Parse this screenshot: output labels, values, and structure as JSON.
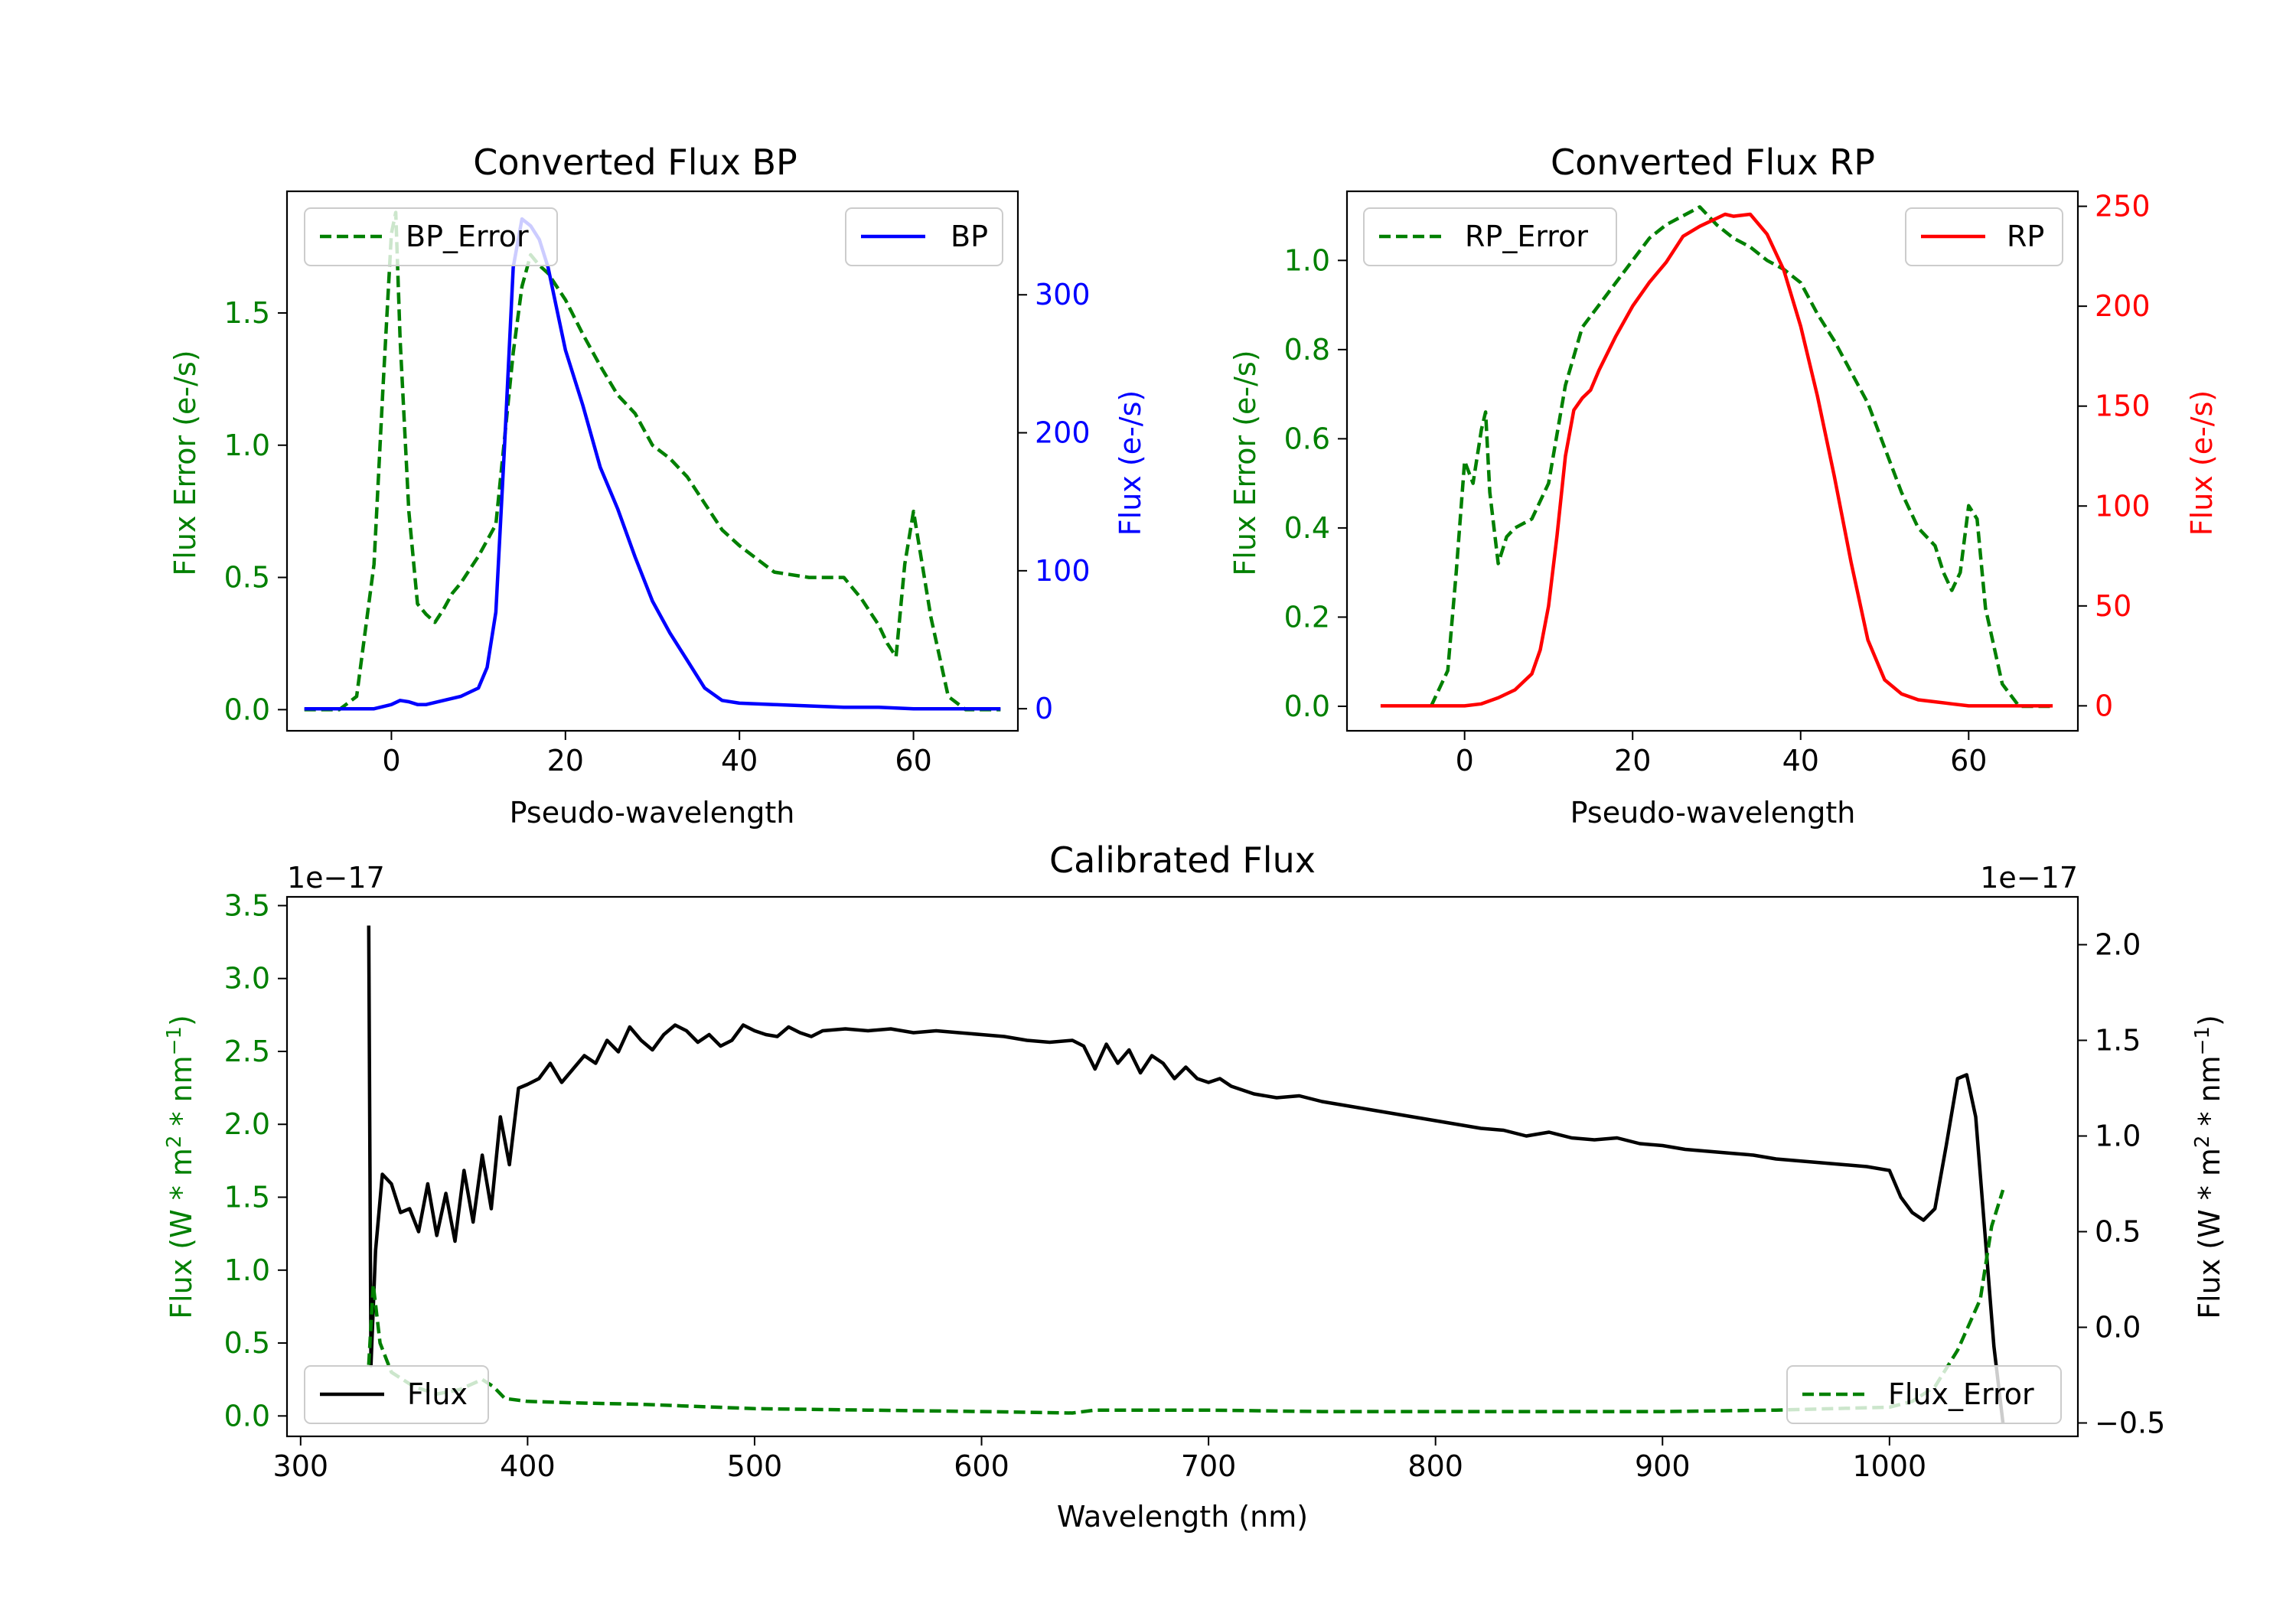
{
  "chart_data": [
    {
      "id": "bp",
      "type": "line",
      "title": "Converted Flux BP",
      "xlabel": "Pseudo-wavelength",
      "ylabel_left": "Flux Error (e-/s)",
      "ylabel_right": "Flux (e-/s)",
      "xlim": [
        -12,
        72
      ],
      "ylim_left": [
        -0.08,
        1.96
      ],
      "ylim_right": [
        -16,
        375
      ],
      "xticks": [
        0,
        20,
        40,
        60
      ],
      "yticks_left": [
        0.0,
        0.5,
        1.0,
        1.5
      ],
      "yticks_right": [
        0,
        100,
        200,
        300
      ],
      "legend_left": "upper left",
      "legend_right": "upper right",
      "series": [
        {
          "name": "BP_Error",
          "label": "BP_Error",
          "axis": "left",
          "color": "#008000",
          "style": "dashed",
          "x": [
            -10,
            -6,
            -4,
            -2,
            -1,
            0,
            0.5,
            1,
            2,
            3,
            4,
            5,
            6,
            7,
            8,
            10,
            12,
            14,
            15,
            16,
            17,
            18,
            19,
            20,
            22,
            24,
            26,
            28,
            30,
            32,
            34,
            36,
            38,
            40,
            44,
            48,
            52,
            54,
            56,
            57,
            58,
            59,
            60,
            62,
            64,
            66,
            70
          ],
          "y": [
            0.0,
            0.0,
            0.05,
            0.55,
            1.2,
            1.8,
            1.88,
            1.4,
            0.75,
            0.4,
            0.36,
            0.33,
            0.38,
            0.44,
            0.48,
            0.58,
            0.7,
            1.35,
            1.6,
            1.72,
            1.68,
            1.65,
            1.6,
            1.55,
            1.42,
            1.3,
            1.19,
            1.12,
            1.0,
            0.95,
            0.88,
            0.78,
            0.68,
            0.62,
            0.52,
            0.5,
            0.5,
            0.42,
            0.32,
            0.25,
            0.2,
            0.55,
            0.75,
            0.35,
            0.05,
            0.0,
            0.0
          ]
        },
        {
          "name": "BP",
          "label": "BP",
          "axis": "right",
          "color": "#0000ff",
          "style": "solid",
          "x": [
            -10,
            -4,
            -2,
            0,
            1,
            2,
            3,
            4,
            6,
            8,
            10,
            11,
            12,
            13,
            14,
            15,
            16,
            17,
            18,
            19,
            20,
            22,
            24,
            26,
            28,
            30,
            32,
            34,
            36,
            38,
            40,
            44,
            48,
            52,
            56,
            60,
            64,
            70
          ],
          "y": [
            0,
            0,
            0,
            3,
            6,
            5,
            3,
            3,
            6,
            9,
            15,
            30,
            70,
            190,
            320,
            355,
            350,
            340,
            320,
            290,
            260,
            220,
            175,
            145,
            110,
            78,
            55,
            35,
            15,
            6,
            4,
            3,
            2,
            1,
            1,
            0,
            0,
            0
          ]
        }
      ]
    },
    {
      "id": "rp",
      "type": "line",
      "title": "Converted Flux RP",
      "xlabel": "Pseudo-wavelength",
      "ylabel_left": "Flux Error (e-/s)",
      "ylabel_right": "Flux (e-/s)",
      "xlim": [
        -14,
        73
      ],
      "ylim_left": [
        -0.055,
        1.155
      ],
      "ylim_right": [
        -12.5,
        257.5
      ],
      "xticks": [
        0,
        20,
        40,
        60
      ],
      "yticks_left": [
        0.0,
        0.2,
        0.4,
        0.6,
        0.8,
        1.0
      ],
      "yticks_right": [
        0,
        50,
        100,
        150,
        200,
        250
      ],
      "legend_left": "upper left",
      "legend_right": "upper right",
      "series": [
        {
          "name": "RP_Error",
          "label": "RP_Error",
          "axis": "left",
          "color": "#008000",
          "style": "dashed",
          "x": [
            -4,
            -2,
            -1,
            0,
            1,
            2,
            2.5,
            3,
            4,
            5,
            6,
            8,
            10,
            12,
            14,
            16,
            18,
            20,
            22,
            24,
            26,
            28,
            30,
            32,
            34,
            36,
            38,
            40,
            42,
            44,
            46,
            48,
            50,
            52,
            54,
            56,
            57,
            58,
            59,
            60,
            61,
            62,
            64,
            66,
            70
          ],
          "y": [
            0.0,
            0.08,
            0.3,
            0.55,
            0.5,
            0.62,
            0.66,
            0.48,
            0.32,
            0.38,
            0.4,
            0.42,
            0.5,
            0.72,
            0.85,
            0.9,
            0.95,
            1.0,
            1.05,
            1.08,
            1.1,
            1.12,
            1.08,
            1.05,
            1.03,
            1.0,
            0.98,
            0.95,
            0.88,
            0.82,
            0.75,
            0.68,
            0.58,
            0.48,
            0.4,
            0.36,
            0.3,
            0.26,
            0.3,
            0.45,
            0.42,
            0.22,
            0.05,
            0.0,
            0.0
          ]
        },
        {
          "name": "RP",
          "label": "RP",
          "axis": "right",
          "color": "#ff0000",
          "style": "solid",
          "x": [
            -10,
            -4,
            0,
            2,
            4,
            6,
            8,
            9,
            10,
            11,
            12,
            13,
            14,
            15,
            16,
            18,
            20,
            22,
            24,
            26,
            28,
            30,
            31,
            32,
            34,
            36,
            38,
            40,
            42,
            44,
            46,
            48,
            50,
            52,
            54,
            56,
            58,
            60,
            62,
            64,
            70
          ],
          "y": [
            0,
            0,
            0,
            1,
            4,
            8,
            16,
            28,
            50,
            85,
            125,
            148,
            154,
            158,
            168,
            185,
            200,
            212,
            222,
            235,
            240,
            244,
            246,
            245,
            246,
            236,
            218,
            190,
            155,
            115,
            72,
            33,
            13,
            6,
            3,
            2,
            1,
            0,
            0,
            0,
            0
          ]
        }
      ]
    },
    {
      "id": "calibrated",
      "type": "line",
      "title": "Calibrated Flux",
      "xlabel": "Wavelength (nm)",
      "ylabel_left": "Flux (W * m",
      "ylabel_right": "Flux (W * m",
      "ylabel_sup": "2",
      "ylabel_mid": " * nm",
      "ylabel_sup2": "−1",
      "ylabel_end": ")",
      "offset_left": "1e−17",
      "offset_right": "1e−17",
      "xlim": [
        294,
        1083
      ],
      "ylim_left": [
        -0.14,
        3.56
      ],
      "ylim_right": [
        -0.57,
        2.25
      ],
      "xticks": [
        300,
        400,
        500,
        600,
        700,
        800,
        900,
        1000
      ],
      "yticks_left": [
        0.0,
        0.5,
        1.0,
        1.5,
        2.0,
        2.5,
        3.0,
        3.5
      ],
      "yticks_left_labels": [
        "0.0",
        "0.5",
        "1.0",
        "1.5",
        "2.0",
        "2.5",
        "3.0",
        "3.5"
      ],
      "yticks_right": [
        -0.5,
        0.0,
        0.5,
        1.0,
        1.5,
        2.0
      ],
      "yticks_right_labels": [
        "−0.5",
        "0.0",
        "0.5",
        "1.0",
        "1.5",
        "2.0"
      ],
      "legend_left": "lower left",
      "legend_right": "lower right",
      "series": [
        {
          "name": "Flux",
          "label": "Flux",
          "axis": "right",
          "color": "#000000",
          "style": "solid",
          "x": [
            330,
            331,
            333,
            336,
            340,
            344,
            348,
            352,
            356,
            360,
            364,
            368,
            372,
            376,
            380,
            384,
            388,
            392,
            396,
            400,
            405,
            410,
            415,
            420,
            425,
            430,
            435,
            440,
            445,
            450,
            455,
            460,
            465,
            470,
            475,
            480,
            485,
            490,
            495,
            500,
            505,
            510,
            515,
            520,
            525,
            530,
            540,
            550,
            560,
            570,
            580,
            590,
            600,
            610,
            620,
            630,
            640,
            645,
            650,
            655,
            660,
            665,
            670,
            675,
            680,
            685,
            690,
            695,
            700,
            705,
            710,
            715,
            720,
            730,
            740,
            750,
            760,
            770,
            780,
            790,
            800,
            810,
            820,
            830,
            840,
            850,
            860,
            870,
            880,
            890,
            900,
            910,
            920,
            930,
            940,
            950,
            960,
            970,
            980,
            990,
            1000,
            1005,
            1010,
            1015,
            1020,
            1025,
            1030,
            1034,
            1038,
            1042,
            1046,
            1050
          ],
          "y": [
            2.1,
            -0.2,
            0.4,
            0.8,
            0.75,
            0.6,
            0.62,
            0.5,
            0.75,
            0.48,
            0.7,
            0.45,
            0.82,
            0.55,
            0.9,
            0.62,
            1.1,
            0.85,
            1.25,
            1.27,
            1.3,
            1.38,
            1.28,
            1.35,
            1.42,
            1.38,
            1.5,
            1.44,
            1.57,
            1.5,
            1.45,
            1.53,
            1.58,
            1.55,
            1.49,
            1.53,
            1.47,
            1.5,
            1.58,
            1.55,
            1.53,
            1.52,
            1.57,
            1.54,
            1.52,
            1.55,
            1.56,
            1.55,
            1.56,
            1.54,
            1.55,
            1.54,
            1.53,
            1.52,
            1.5,
            1.49,
            1.5,
            1.47,
            1.35,
            1.48,
            1.38,
            1.45,
            1.33,
            1.42,
            1.38,
            1.3,
            1.36,
            1.3,
            1.28,
            1.3,
            1.26,
            1.24,
            1.22,
            1.2,
            1.21,
            1.18,
            1.16,
            1.14,
            1.12,
            1.1,
            1.08,
            1.06,
            1.04,
            1.03,
            1.0,
            1.02,
            0.99,
            0.98,
            0.99,
            0.96,
            0.95,
            0.93,
            0.92,
            0.91,
            0.9,
            0.88,
            0.87,
            0.86,
            0.85,
            0.84,
            0.82,
            0.68,
            0.6,
            0.56,
            0.62,
            0.95,
            1.3,
            1.32,
            1.1,
            0.5,
            -0.1,
            -0.5
          ]
        },
        {
          "name": "Flux_Error",
          "label": "Flux_Error",
          "axis": "left",
          "color": "#008000",
          "style": "dashed",
          "x": [
            330,
            332,
            335,
            340,
            350,
            360,
            370,
            380,
            385,
            390,
            400,
            420,
            450,
            500,
            550,
            600,
            640,
            650,
            700,
            750,
            800,
            850,
            900,
            950,
            1000,
            1010,
            1020,
            1030,
            1040,
            1045,
            1050
          ],
          "y": [
            0.35,
            0.9,
            0.5,
            0.3,
            0.2,
            0.15,
            0.18,
            0.25,
            0.2,
            0.12,
            0.1,
            0.09,
            0.08,
            0.05,
            0.04,
            0.03,
            0.02,
            0.04,
            0.04,
            0.03,
            0.03,
            0.03,
            0.03,
            0.04,
            0.06,
            0.1,
            0.2,
            0.45,
            0.8,
            1.3,
            1.55
          ]
        }
      ]
    }
  ]
}
